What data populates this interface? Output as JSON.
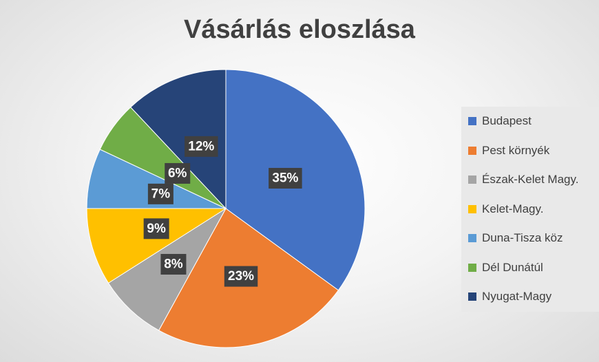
{
  "chart_data": {
    "type": "pie",
    "title": "Vásárlás eloszlása",
    "categories": [
      "Budapest",
      "Pest környék",
      "Észak-Kelet Magy.",
      "Kelet-Magy.",
      "Duna-Tisza köz",
      "Dél Dunátúl",
      "Nyugat-Magy"
    ],
    "values": [
      35,
      23,
      8,
      9,
      7,
      6,
      12
    ],
    "labels": [
      "35%",
      "23%",
      "8%",
      "9%",
      "7%",
      "6%",
      "12%"
    ],
    "colors": [
      "#4472C4",
      "#ED7D31",
      "#A5A5A5",
      "#FFC000",
      "#5B9BD5",
      "#70AD47",
      "#264478"
    ],
    "legend_position": "right"
  }
}
